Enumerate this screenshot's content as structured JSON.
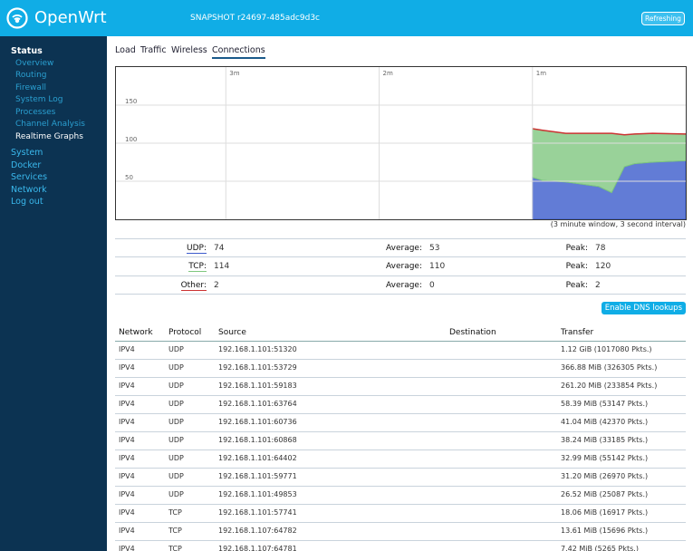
{
  "header": {
    "brand": "OpenWrt",
    "version": "SNAPSHOT r24697-485adc9d3c",
    "status": "Refreshing"
  },
  "sidebar": [
    {
      "label": "Status",
      "children": [
        "Overview",
        "Routing",
        "Firewall",
        "System Log",
        "Processes",
        "Channel Analysis",
        "Realtime Graphs"
      ]
    },
    {
      "label": "System"
    },
    {
      "label": "Docker"
    },
    {
      "label": "Services"
    },
    {
      "label": "Network"
    },
    {
      "label": "Log out"
    }
  ],
  "tabs": [
    "Load",
    "Traffic",
    "Wireless",
    "Connections"
  ],
  "graph": {
    "x": [
      60,
      56,
      47,
      34,
      29,
      24,
      20,
      13,
      0
    ],
    "xlim": [
      223,
      0
    ],
    "ylim": [
      0,
      200
    ],
    "xticks": [
      {
        "value": 180,
        "label": "3m"
      },
      {
        "value": 120,
        "label": "2m"
      },
      {
        "value": 60,
        "label": "1m"
      }
    ],
    "yticks": [
      150,
      100,
      50
    ],
    "series": [
      {
        "name": "UDP",
        "color": "#3b5bcc",
        "values": [
          55,
          51,
          49,
          43,
          35,
          69,
          73,
          75,
          77
        ]
      },
      {
        "name": "TCP",
        "color": "#7fc77f",
        "values": [
          64,
          66,
          64,
          70,
          78,
          42,
          39,
          38,
          35
        ]
      },
      {
        "name": "Other",
        "color": "#cc3333",
        "values": [
          0,
          0,
          0,
          0,
          0,
          0,
          0,
          0,
          0
        ]
      }
    ],
    "caption": "(3 minute window, 3 second interval)"
  },
  "stats": [
    {
      "label": "UDP:",
      "value": 74,
      "avg_label": "Average:",
      "avg": 53,
      "peak_label": "Peak:",
      "peak": 78
    },
    {
      "label": "TCP:",
      "value": 114,
      "avg_label": "Average:",
      "avg": 110,
      "peak_label": "Peak:",
      "peak": 120
    },
    {
      "label": "Other:",
      "value": 2,
      "avg_label": "Average:",
      "avg": 0,
      "peak_label": "Peak:",
      "peak": 2
    }
  ],
  "button": "Enable DNS lookups",
  "connections": {
    "columns": [
      "Network",
      "Protocol",
      "Source",
      "Destination",
      "Transfer"
    ],
    "rows": [
      [
        "IPV4",
        "UDP",
        "192.168.1.101:51320",
        "",
        "1.12 GiB (1017080 Pkts.)"
      ],
      [
        "IPV4",
        "UDP",
        "192.168.1.101:53729",
        "",
        "366.88 MiB (326305 Pkts.)"
      ],
      [
        "IPV4",
        "UDP",
        "192.168.1.101:59183",
        "",
        "261.20 MiB (233854 Pkts.)"
      ],
      [
        "IPV4",
        "UDP",
        "192.168.1.101:63764",
        "",
        "58.39 MiB (53147 Pkts.)"
      ],
      [
        "IPV4",
        "UDP",
        "192.168.1.101:60736",
        "",
        "41.04 MiB (42370 Pkts.)"
      ],
      [
        "IPV4",
        "UDP",
        "192.168.1.101:60868",
        "",
        "38.24 MiB (33185 Pkts.)"
      ],
      [
        "IPV4",
        "UDP",
        "192.168.1.101:64402",
        "",
        "32.99 MiB (55142 Pkts.)"
      ],
      [
        "IPV4",
        "UDP",
        "192.168.1.101:59771",
        "",
        "31.20 MiB (26970 Pkts.)"
      ],
      [
        "IPV4",
        "UDP",
        "192.168.1.101:49853",
        "",
        "26.52 MiB (25087 Pkts.)"
      ],
      [
        "IPV4",
        "TCP",
        "192.168.1.101:57741",
        "",
        "18.06 MiB (16917 Pkts.)"
      ],
      [
        "IPV4",
        "TCP",
        "192.168.1.107:64782",
        "",
        "13.61 MiB (15696 Pkts.)"
      ],
      [
        "IPV4",
        "TCP",
        "192.168.1.107:64781",
        "",
        "7.42 MiB (5265 Pkts.)"
      ]
    ]
  }
}
